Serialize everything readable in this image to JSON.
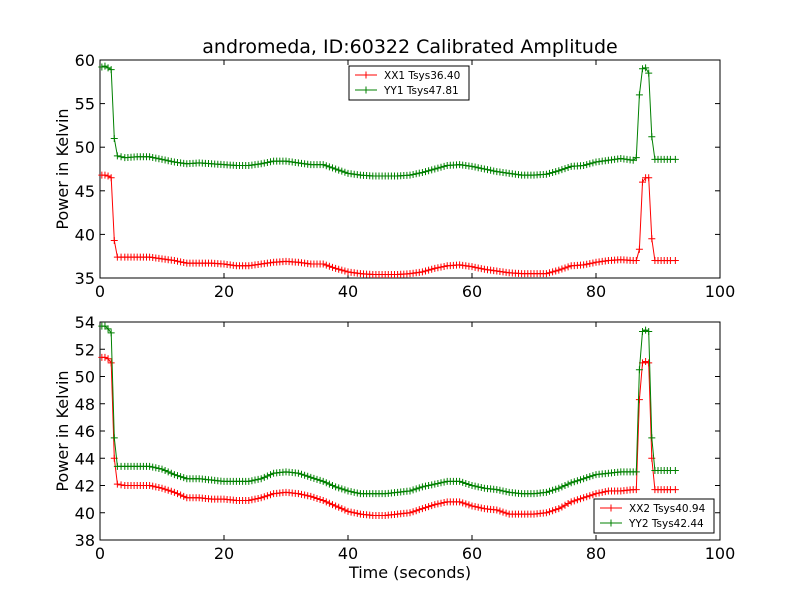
{
  "figure": {
    "title": "andromeda, ID:60322 Calibrated Amplitude"
  },
  "chart_data": [
    {
      "type": "line",
      "ylabel": "Power in Kelvin",
      "xlabel": "",
      "xlim": [
        0,
        100
      ],
      "ylim": [
        35,
        60
      ],
      "xticks": [
        0,
        20,
        40,
        60,
        80,
        100
      ],
      "yticks": [
        35,
        40,
        45,
        50,
        55,
        60
      ],
      "grid": false,
      "legend_position": "top-center",
      "series": [
        {
          "name": "XX1 Tsys36.40",
          "color": "#ff0000",
          "marker": "+",
          "points": [
            [
              0.3,
              46.8
            ],
            [
              0.8,
              46.8
            ],
            [
              1.3,
              46.7
            ],
            [
              1.8,
              46.5
            ],
            [
              2.3,
              39.3
            ],
            [
              2.8,
              37.4
            ],
            [
              4,
              37.4
            ],
            [
              6,
              37.4
            ],
            [
              8,
              37.4
            ],
            [
              10,
              37.2
            ],
            [
              12,
              37.0
            ],
            [
              14,
              36.7
            ],
            [
              16,
              36.7
            ],
            [
              18,
              36.7
            ],
            [
              20,
              36.6
            ],
            [
              22,
              36.4
            ],
            [
              24,
              36.4
            ],
            [
              26,
              36.6
            ],
            [
              28,
              36.8
            ],
            [
              30,
              36.9
            ],
            [
              32,
              36.8
            ],
            [
              34,
              36.6
            ],
            [
              36,
              36.6
            ],
            [
              38,
              36.1
            ],
            [
              40,
              35.7
            ],
            [
              42,
              35.5
            ],
            [
              44,
              35.4
            ],
            [
              46,
              35.4
            ],
            [
              48,
              35.4
            ],
            [
              50,
              35.5
            ],
            [
              52,
              35.7
            ],
            [
              54,
              36.1
            ],
            [
              56,
              36.4
            ],
            [
              58,
              36.5
            ],
            [
              60,
              36.3
            ],
            [
              62,
              36.0
            ],
            [
              64,
              35.8
            ],
            [
              66,
              35.6
            ],
            [
              68,
              35.5
            ],
            [
              70,
              35.5
            ],
            [
              72,
              35.5
            ],
            [
              74,
              35.9
            ],
            [
              76,
              36.4
            ],
            [
              78,
              36.5
            ],
            [
              80,
              36.8
            ],
            [
              82,
              37.0
            ],
            [
              84,
              37.1
            ],
            [
              86,
              37.0
            ],
            [
              86.5,
              37.0
            ],
            [
              87.0,
              38.3
            ],
            [
              87.5,
              46.0
            ],
            [
              88.0,
              46.5
            ],
            [
              88.5,
              46.5
            ],
            [
              89.0,
              39.5
            ],
            [
              89.5,
              37.0
            ],
            [
              90,
              37.0
            ],
            [
              91,
              37.0
            ],
            [
              92,
              37.0
            ],
            [
              92.8,
              37.0
            ]
          ]
        },
        {
          "name": "YY1 Tsys47.81",
          "color": "#008000",
          "marker": "+",
          "points": [
            [
              0.3,
              59.2
            ],
            [
              0.8,
              59.3
            ],
            [
              1.3,
              59.1
            ],
            [
              1.8,
              58.9
            ],
            [
              2.3,
              51.0
            ],
            [
              2.8,
              49.0
            ],
            [
              4,
              48.8
            ],
            [
              6,
              48.9
            ],
            [
              8,
              48.9
            ],
            [
              10,
              48.6
            ],
            [
              12,
              48.3
            ],
            [
              14,
              48.1
            ],
            [
              16,
              48.2
            ],
            [
              18,
              48.1
            ],
            [
              20,
              48.0
            ],
            [
              22,
              47.9
            ],
            [
              24,
              47.9
            ],
            [
              26,
              48.1
            ],
            [
              28,
              48.4
            ],
            [
              30,
              48.4
            ],
            [
              32,
              48.2
            ],
            [
              34,
              48.0
            ],
            [
              36,
              48.0
            ],
            [
              38,
              47.5
            ],
            [
              40,
              47.0
            ],
            [
              42,
              46.8
            ],
            [
              44,
              46.7
            ],
            [
              46,
              46.7
            ],
            [
              48,
              46.7
            ],
            [
              50,
              46.8
            ],
            [
              52,
              47.1
            ],
            [
              54,
              47.5
            ],
            [
              56,
              47.9
            ],
            [
              58,
              48.0
            ],
            [
              60,
              47.8
            ],
            [
              62,
              47.5
            ],
            [
              64,
              47.2
            ],
            [
              66,
              47.0
            ],
            [
              68,
              46.8
            ],
            [
              70,
              46.8
            ],
            [
              72,
              46.9
            ],
            [
              74,
              47.3
            ],
            [
              76,
              47.8
            ],
            [
              78,
              47.9
            ],
            [
              80,
              48.3
            ],
            [
              82,
              48.5
            ],
            [
              84,
              48.7
            ],
            [
              86,
              48.5
            ],
            [
              86.5,
              48.8
            ],
            [
              87.0,
              56.0
            ],
            [
              87.5,
              59.0
            ],
            [
              88.0,
              59.1
            ],
            [
              88.5,
              58.5
            ],
            [
              89.0,
              51.2
            ],
            [
              89.5,
              48.6
            ],
            [
              90,
              48.6
            ],
            [
              91,
              48.6
            ],
            [
              92,
              48.6
            ],
            [
              92.8,
              48.6
            ]
          ]
        }
      ]
    },
    {
      "type": "line",
      "ylabel": "Power in Kelvin",
      "xlabel": "Time (seconds)",
      "xlim": [
        0,
        100
      ],
      "ylim": [
        38,
        54
      ],
      "xticks": [
        0,
        20,
        40,
        60,
        80,
        100
      ],
      "yticks": [
        38,
        40,
        42,
        44,
        46,
        48,
        50,
        52,
        54
      ],
      "grid": false,
      "legend_position": "bottom-right",
      "series": [
        {
          "name": "XX2 Tsys40.94",
          "color": "#ff0000",
          "marker": "+",
          "points": [
            [
              0.3,
              51.4
            ],
            [
              0.8,
              51.4
            ],
            [
              1.3,
              51.3
            ],
            [
              1.8,
              51.0
            ],
            [
              2.3,
              44.0
            ],
            [
              2.8,
              42.1
            ],
            [
              4,
              42.0
            ],
            [
              6,
              42.0
            ],
            [
              8,
              42.0
            ],
            [
              10,
              41.8
            ],
            [
              12,
              41.5
            ],
            [
              14,
              41.1
            ],
            [
              16,
              41.1
            ],
            [
              18,
              41.0
            ],
            [
              20,
              41.0
            ],
            [
              22,
              40.9
            ],
            [
              24,
              40.9
            ],
            [
              26,
              41.1
            ],
            [
              28,
              41.4
            ],
            [
              30,
              41.5
            ],
            [
              32,
              41.4
            ],
            [
              34,
              41.2
            ],
            [
              36,
              40.9
            ],
            [
              38,
              40.5
            ],
            [
              40,
              40.1
            ],
            [
              42,
              39.9
            ],
            [
              44,
              39.8
            ],
            [
              46,
              39.8
            ],
            [
              48,
              39.9
            ],
            [
              50,
              40.0
            ],
            [
              52,
              40.3
            ],
            [
              54,
              40.6
            ],
            [
              56,
              40.8
            ],
            [
              58,
              40.8
            ],
            [
              60,
              40.5
            ],
            [
              62,
              40.3
            ],
            [
              64,
              40.2
            ],
            [
              66,
              39.9
            ],
            [
              68,
              39.9
            ],
            [
              70,
              39.9
            ],
            [
              72,
              40.0
            ],
            [
              74,
              40.3
            ],
            [
              76,
              40.8
            ],
            [
              78,
              41.1
            ],
            [
              80,
              41.4
            ],
            [
              82,
              41.6
            ],
            [
              84,
              41.6
            ],
            [
              86,
              41.7
            ],
            [
              86.5,
              41.7
            ],
            [
              87.0,
              48.3
            ],
            [
              87.5,
              51.0
            ],
            [
              88.0,
              51.1
            ],
            [
              88.5,
              51.0
            ],
            [
              89.0,
              44.0
            ],
            [
              89.5,
              41.7
            ],
            [
              90,
              41.7
            ],
            [
              91,
              41.7
            ],
            [
              92,
              41.7
            ],
            [
              92.8,
              41.7
            ]
          ]
        },
        {
          "name": "YY2 Tsys42.44",
          "color": "#008000",
          "marker": "+",
          "points": [
            [
              0.3,
              53.7
            ],
            [
              0.8,
              53.7
            ],
            [
              1.3,
              53.5
            ],
            [
              1.8,
              53.2
            ],
            [
              2.3,
              45.5
            ],
            [
              2.8,
              43.4
            ],
            [
              4,
              43.4
            ],
            [
              6,
              43.4
            ],
            [
              8,
              43.4
            ],
            [
              10,
              43.2
            ],
            [
              12,
              42.8
            ],
            [
              14,
              42.5
            ],
            [
              16,
              42.5
            ],
            [
              18,
              42.4
            ],
            [
              20,
              42.3
            ],
            [
              22,
              42.3
            ],
            [
              24,
              42.3
            ],
            [
              26,
              42.5
            ],
            [
              28,
              42.9
            ],
            [
              30,
              43.0
            ],
            [
              32,
              42.9
            ],
            [
              34,
              42.6
            ],
            [
              36,
              42.3
            ],
            [
              38,
              41.9
            ],
            [
              40,
              41.6
            ],
            [
              42,
              41.4
            ],
            [
              44,
              41.4
            ],
            [
              46,
              41.4
            ],
            [
              48,
              41.5
            ],
            [
              50,
              41.6
            ],
            [
              52,
              41.9
            ],
            [
              54,
              42.1
            ],
            [
              56,
              42.3
            ],
            [
              58,
              42.3
            ],
            [
              60,
              42.0
            ],
            [
              62,
              41.8
            ],
            [
              64,
              41.7
            ],
            [
              66,
              41.5
            ],
            [
              68,
              41.4
            ],
            [
              70,
              41.4
            ],
            [
              72,
              41.5
            ],
            [
              74,
              41.8
            ],
            [
              76,
              42.2
            ],
            [
              78,
              42.5
            ],
            [
              80,
              42.8
            ],
            [
              82,
              42.9
            ],
            [
              84,
              43.0
            ],
            [
              86,
              43.0
            ],
            [
              86.5,
              43.0
            ],
            [
              87.0,
              50.5
            ],
            [
              87.5,
              53.3
            ],
            [
              88.0,
              53.4
            ],
            [
              88.5,
              53.3
            ],
            [
              89.0,
              45.5
            ],
            [
              89.5,
              43.1
            ],
            [
              90,
              43.1
            ],
            [
              91,
              43.1
            ],
            [
              92,
              43.1
            ],
            [
              92.8,
              43.1
            ]
          ]
        }
      ]
    }
  ]
}
